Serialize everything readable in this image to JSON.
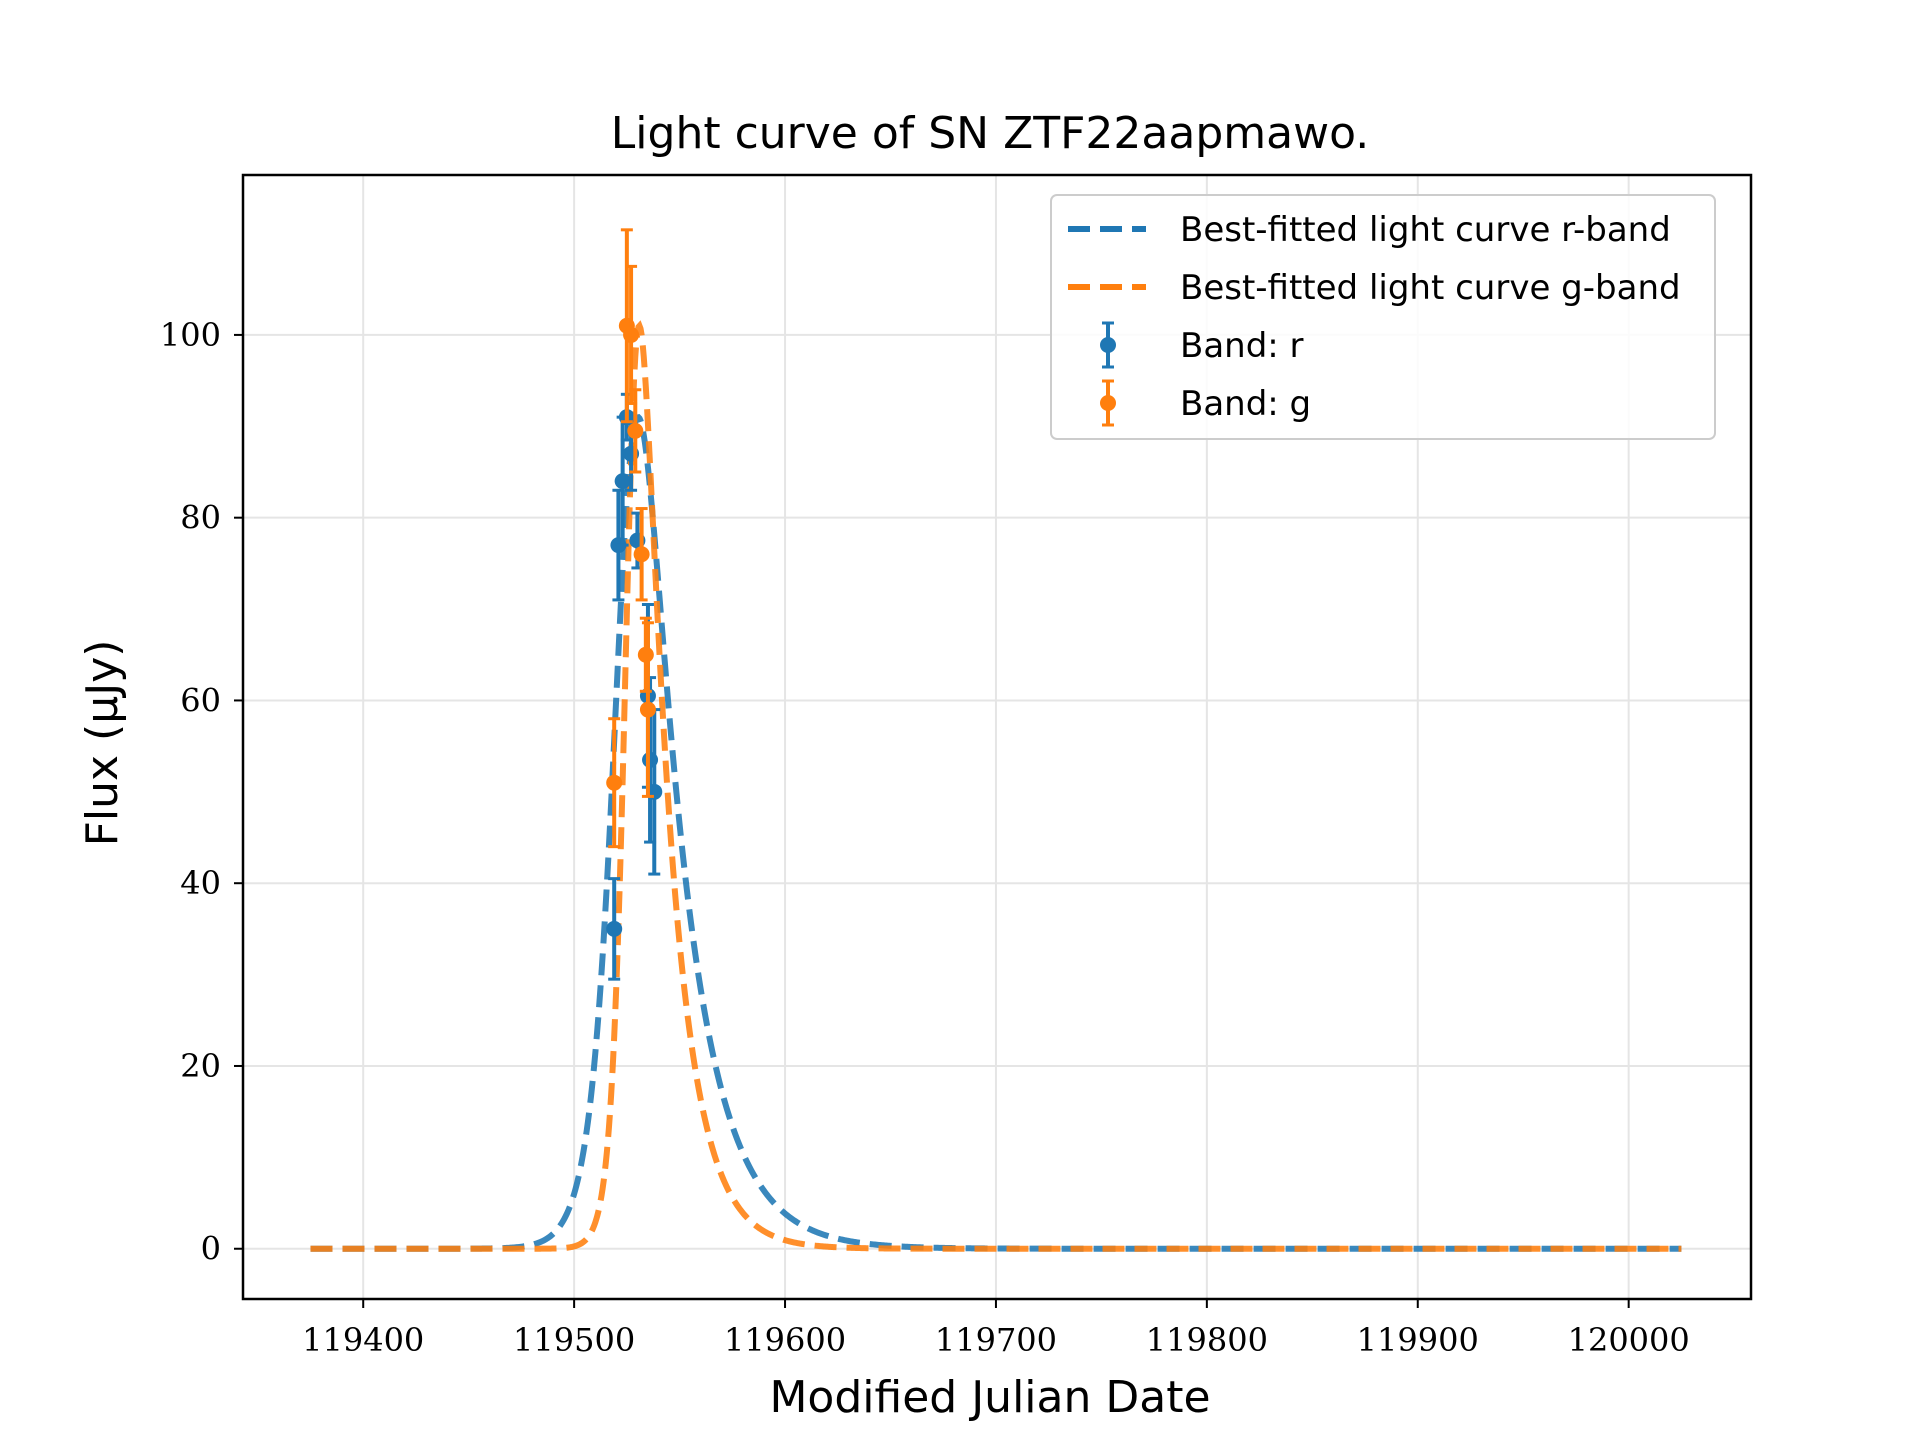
{
  "chart_data": {
    "type": "scatter",
    "title": "Light curve of SN ZTF22aapmawo.",
    "xlabel": "Modified Julian Date",
    "ylabel": "Flux (μJy)",
    "xlim": [
      119343,
      120058
    ],
    "ylim": [
      -5.5,
      117.5
    ],
    "xticks": [
      119400,
      119500,
      119600,
      119700,
      119800,
      119900,
      120000
    ],
    "yticks": [
      0,
      20,
      40,
      60,
      80,
      100
    ],
    "grid": true,
    "legend_position": "top-right",
    "colors": {
      "r": "#1f77b4",
      "g": "#ff7f0e"
    },
    "fit_range": [
      119375,
      120025
    ],
    "series": [
      {
        "name": "Best-fitted light curve r-band",
        "kind": "fit",
        "band": "r",
        "model": {
          "t0": 119525,
          "amplitude": 91,
          "rise": 5.5,
          "fall": 20,
          "decay_after_peak": 0
        }
      },
      {
        "name": "Best-fitted light curve g-band",
        "kind": "fit",
        "band": "g",
        "model": {
          "t0": 119527,
          "amplitude": 101,
          "rise": 3.2,
          "fall": 14,
          "decay_after_peak": 0
        }
      },
      {
        "name": "Band: r",
        "kind": "data",
        "band": "r",
        "points": [
          {
            "x": 119519,
            "y": 35.0,
            "err": 5.5
          },
          {
            "x": 119521,
            "y": 77.0,
            "err": 6.0
          },
          {
            "x": 119523,
            "y": 84.0,
            "err": 7.0
          },
          {
            "x": 119525,
            "y": 91.0,
            "err": 2.5
          },
          {
            "x": 119527,
            "y": 87.0,
            "err": 4.0
          },
          {
            "x": 119530,
            "y": 77.5,
            "err": 3.0
          },
          {
            "x": 119535,
            "y": 60.5,
            "err": 10.0
          },
          {
            "x": 119536,
            "y": 53.5,
            "err": 9.0
          },
          {
            "x": 119538,
            "y": 50.0,
            "err": 9.0
          }
        ]
      },
      {
        "name": "Band: g",
        "kind": "data",
        "band": "g",
        "points": [
          {
            "x": 119519,
            "y": 51.0,
            "err": 7.0
          },
          {
            "x": 119525,
            "y": 101.0,
            "err": 10.5
          },
          {
            "x": 119527,
            "y": 100.0,
            "err": 7.5
          },
          {
            "x": 119529,
            "y": 89.5,
            "err": 4.5
          },
          {
            "x": 119532,
            "y": 76.0,
            "err": 5.0
          },
          {
            "x": 119534,
            "y": 65.0,
            "err": 4.0
          },
          {
            "x": 119535,
            "y": 59.0,
            "err": 9.5
          }
        ]
      }
    ]
  }
}
